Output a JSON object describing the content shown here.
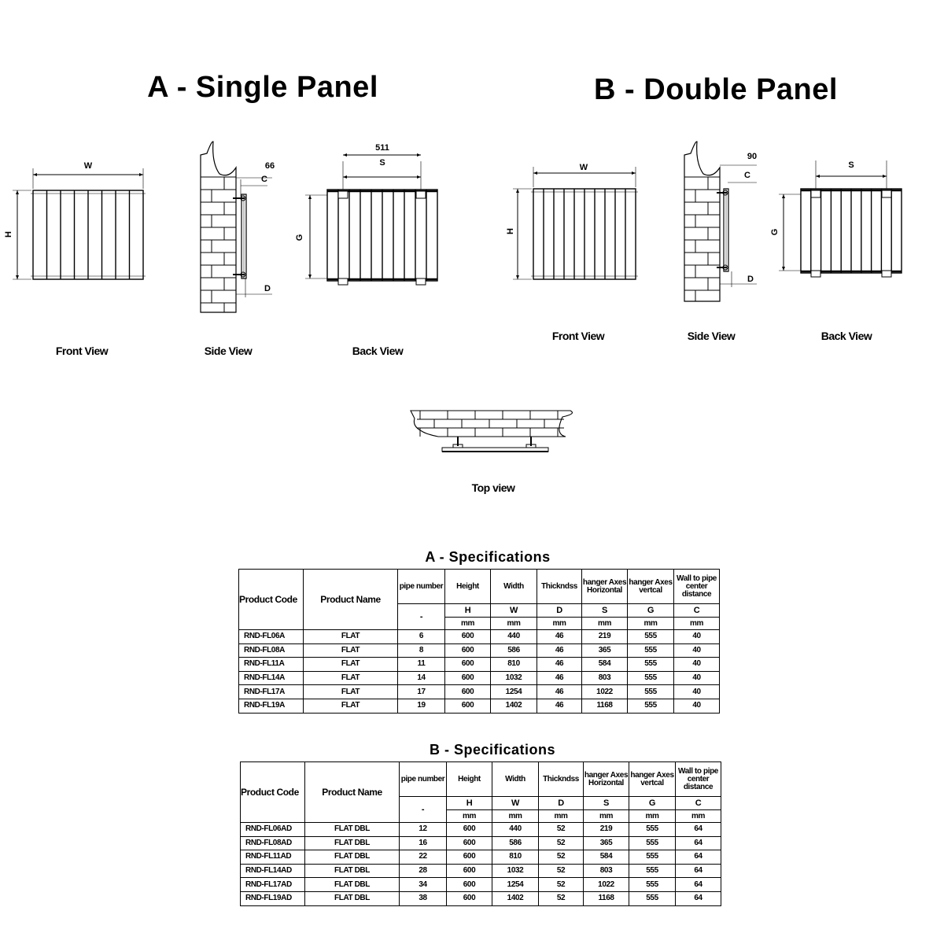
{
  "section_a": {
    "title": "A - Single Panel",
    "front_view": {
      "caption": "Front View",
      "width_label": "W",
      "height_label": "H"
    },
    "side_view": {
      "caption": "Side View",
      "offset_value": "66",
      "c_label": "C",
      "d_label": "D"
    },
    "back_view": {
      "caption": "Back View",
      "span_value": "511",
      "s_label": "S",
      "g_label": "G"
    }
  },
  "section_b": {
    "title": "B - Double Panel",
    "front_view": {
      "caption": "Front View",
      "width_label": "W",
      "height_label": "H"
    },
    "side_view": {
      "caption": "Side View",
      "offset_value": "90",
      "c_label": "C",
      "d_label": "D"
    },
    "back_view": {
      "caption": "Back View",
      "s_label": "S",
      "g_label": "G"
    }
  },
  "top_view": {
    "caption": "Top view"
  },
  "tables": [
    {
      "title": "A - Specifications",
      "headers": {
        "product_code": "Product Code",
        "product_name": "Product Name",
        "columns": [
          {
            "name": "pipe number",
            "symbol": "-",
            "unit": ""
          },
          {
            "name": "Height",
            "symbol": "H",
            "unit": "mm"
          },
          {
            "name": "Width",
            "symbol": "W",
            "unit": "mm"
          },
          {
            "name": "Thickndss",
            "symbol": "D",
            "unit": "mm"
          },
          {
            "name": "hanger Axes Horizontal",
            "symbol": "S",
            "unit": "mm"
          },
          {
            "name": "hanger Axes vertcal",
            "symbol": "G",
            "unit": "mm"
          },
          {
            "name": "Wall to pipe center distance",
            "symbol": "C",
            "unit": "mm"
          }
        ]
      },
      "rows": [
        [
          "RND-FL06A",
          "FLAT",
          "6",
          "600",
          "440",
          "46",
          "219",
          "555",
          "40"
        ],
        [
          "RND-FL08A",
          "FLAT",
          "8",
          "600",
          "586",
          "46",
          "365",
          "555",
          "40"
        ],
        [
          "RND-FL11A",
          "FLAT",
          "11",
          "600",
          "810",
          "46",
          "584",
          "555",
          "40"
        ],
        [
          "RND-FL14A",
          "FLAT",
          "14",
          "600",
          "1032",
          "46",
          "803",
          "555",
          "40"
        ],
        [
          "RND-FL17A",
          "FLAT",
          "17",
          "600",
          "1254",
          "46",
          "1022",
          "555",
          "40"
        ],
        [
          "RND-FL19A",
          "FLAT",
          "19",
          "600",
          "1402",
          "46",
          "1168",
          "555",
          "40"
        ]
      ]
    },
    {
      "title": "B - Specifications",
      "headers": {
        "product_code": "Product Code",
        "product_name": "Product Name",
        "columns": [
          {
            "name": "pipe number",
            "symbol": "-",
            "unit": ""
          },
          {
            "name": "Height",
            "symbol": "H",
            "unit": "mm"
          },
          {
            "name": "Width",
            "symbol": "W",
            "unit": "mm"
          },
          {
            "name": "Thickndss",
            "symbol": "D",
            "unit": "mm"
          },
          {
            "name": "hanger Axes Horizontal",
            "symbol": "S",
            "unit": "mm"
          },
          {
            "name": "hanger Axes vertcal",
            "symbol": "G",
            "unit": "mm"
          },
          {
            "name": "Wall to pipe center distance",
            "symbol": "C",
            "unit": "mm"
          }
        ]
      },
      "rows": [
        [
          "RND-FL06AD",
          "FLAT DBL",
          "12",
          "600",
          "440",
          "52",
          "219",
          "555",
          "64"
        ],
        [
          "RND-FL08AD",
          "FLAT DBL",
          "16",
          "600",
          "586",
          "52",
          "365",
          "555",
          "64"
        ],
        [
          "RND-FL11AD",
          "FLAT DBL",
          "22",
          "600",
          "810",
          "52",
          "584",
          "555",
          "64"
        ],
        [
          "RND-FL14AD",
          "FLAT DBL",
          "28",
          "600",
          "1032",
          "52",
          "803",
          "555",
          "64"
        ],
        [
          "RND-FL17AD",
          "FLAT DBL",
          "34",
          "600",
          "1254",
          "52",
          "1022",
          "555",
          "64"
        ],
        [
          "RND-FL19AD",
          "FLAT DBL",
          "38",
          "600",
          "1402",
          "52",
          "1168",
          "555",
          "64"
        ]
      ]
    }
  ]
}
